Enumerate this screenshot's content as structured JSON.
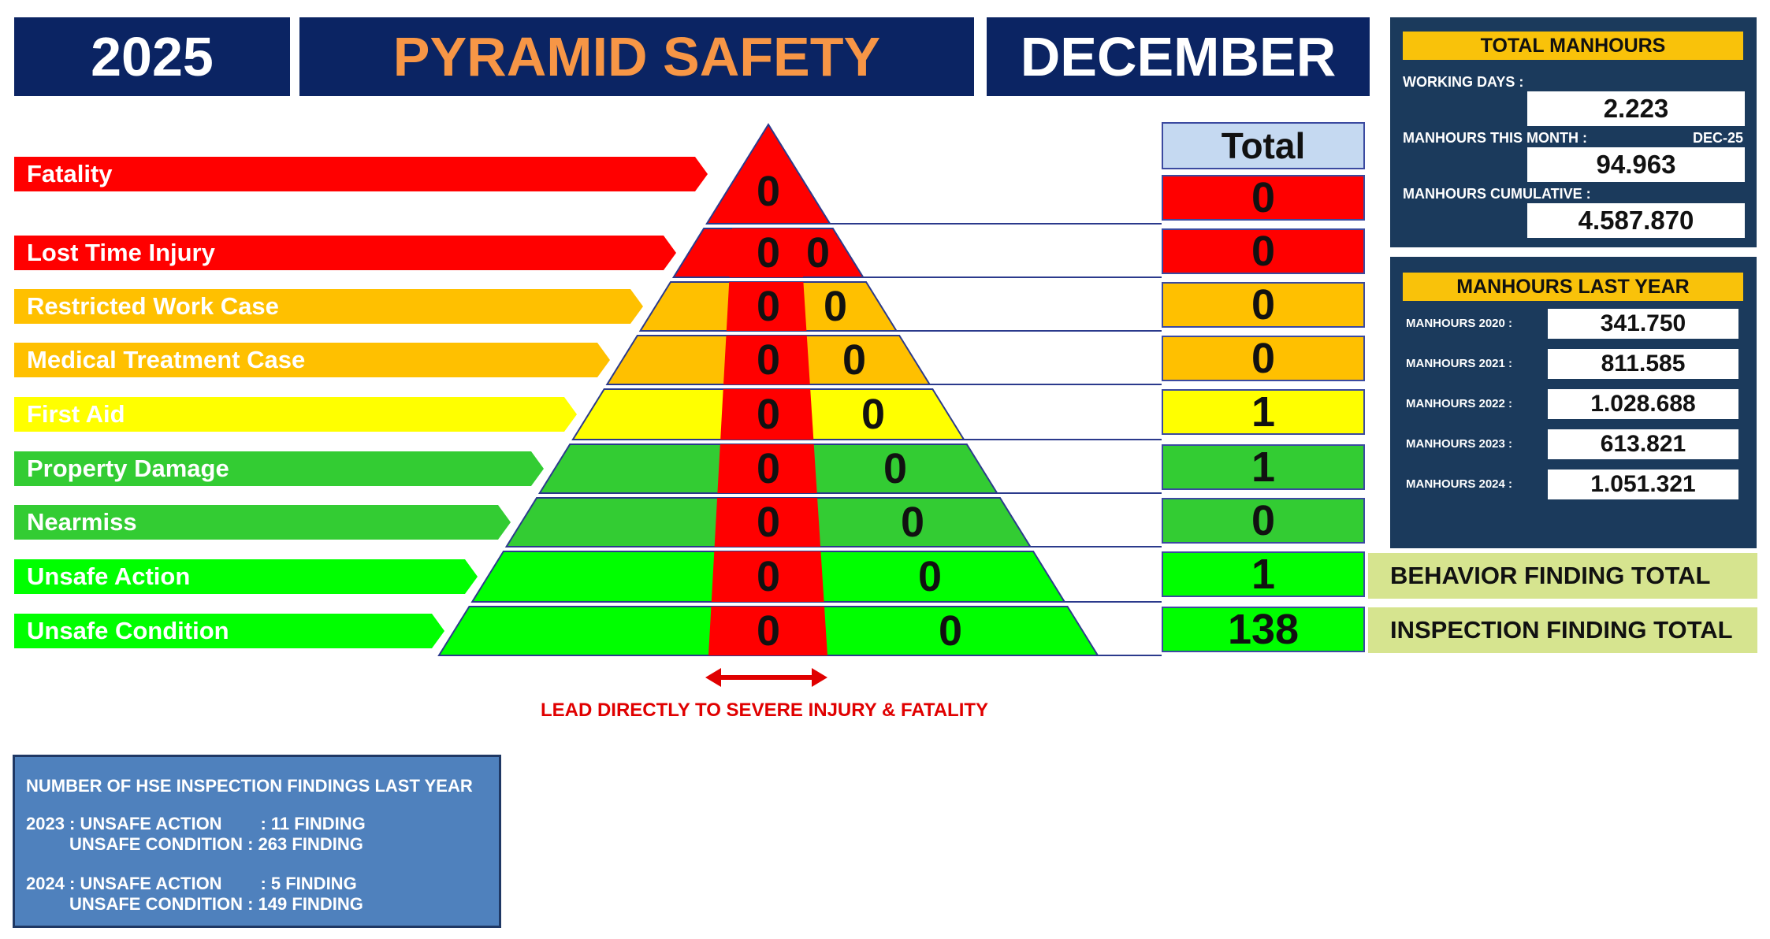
{
  "header": {
    "year": "2025",
    "title": "PYRAMID SAFETY",
    "month": "DECEMBER"
  },
  "pyramid": {
    "total_header": "Total",
    "rows": [
      {
        "label": "Fatality",
        "red_value": "0",
        "side_value": "",
        "total": "0",
        "color": "#ff0000"
      },
      {
        "label": "Lost Time Injury",
        "red_value": "0",
        "side_value": "0",
        "total": "0",
        "color": "#ff0000"
      },
      {
        "label": "Restricted Work Case",
        "red_value": "0",
        "side_value": "0",
        "total": "0",
        "color": "#ffc000"
      },
      {
        "label": "Medical Treatment Case",
        "red_value": "0",
        "side_value": "0",
        "total": "0",
        "color": "#ffc000"
      },
      {
        "label": "First Aid",
        "red_value": "0",
        "side_value": "0",
        "total": "1",
        "color": "#ffff00"
      },
      {
        "label": "Property Damage",
        "red_value": "0",
        "side_value": "0",
        "total": "1",
        "color": "#33cc33"
      },
      {
        "label": "Nearmiss",
        "red_value": "0",
        "side_value": "0",
        "total": "0",
        "color": "#33cc33"
      },
      {
        "label": "Unsafe Action",
        "red_value": "0",
        "side_value": "0",
        "total": "1",
        "color": "#00ff00"
      },
      {
        "label": "Unsafe Condition",
        "red_value": "0",
        "side_value": "0",
        "total": "138",
        "color": "#00ff00"
      }
    ],
    "behavior_label": "BEHAVIOR FINDING TOTAL",
    "inspection_label": "INSPECTION FINDING TOTAL",
    "lead_note": "LEAD DIRECTLY TO SEVERE INJURY & FATALITY",
    "lead_color": "#e00000"
  },
  "total_manhours": {
    "title": "TOTAL MANHOURS",
    "working_days_label": "WORKING DAYS :",
    "working_days_value": "2.223",
    "this_month_label": "MANHOURS THIS MONTH :",
    "this_month_period": "DEC-25",
    "this_month_value": "94.963",
    "cumulative_label": "MANHOURS CUMULATIVE :",
    "cumulative_value": "4.587.870"
  },
  "last_year": {
    "title": "MANHOURS LAST YEAR",
    "rows": [
      {
        "label": "MANHOURS 2020 :",
        "value": "341.750"
      },
      {
        "label": "MANHOURS 2021 :",
        "value": "811.585"
      },
      {
        "label": "MANHOURS 2022 :",
        "value": "1.028.688"
      },
      {
        "label": "MANHOURS 2023 :",
        "value": "613.821"
      },
      {
        "label": "MANHOURS 2024 :",
        "value": "1.051.321"
      }
    ]
  },
  "hse_findings": {
    "title": "NUMBER OF HSE INSPECTION FINDINGS LAST YEAR",
    "y2023_line1": "2023 : UNSAFE ACTION        : 11 FINDING",
    "y2023_line2": "         UNSAFE CONDITION : 263 FINDING",
    "y2024_line1": "2024 : UNSAFE ACTION        : 5 FINDING",
    "y2024_line2": "         UNSAFE CONDITION : 149 FINDING"
  },
  "colors": {
    "header_bg": "#0b2463",
    "title_orange": "#f79646",
    "panel_bg": "#1b3a5c",
    "panel_title": "#f9c20a",
    "finding_bg": "#d6e48f",
    "notes_bg": "#4f81bd"
  }
}
